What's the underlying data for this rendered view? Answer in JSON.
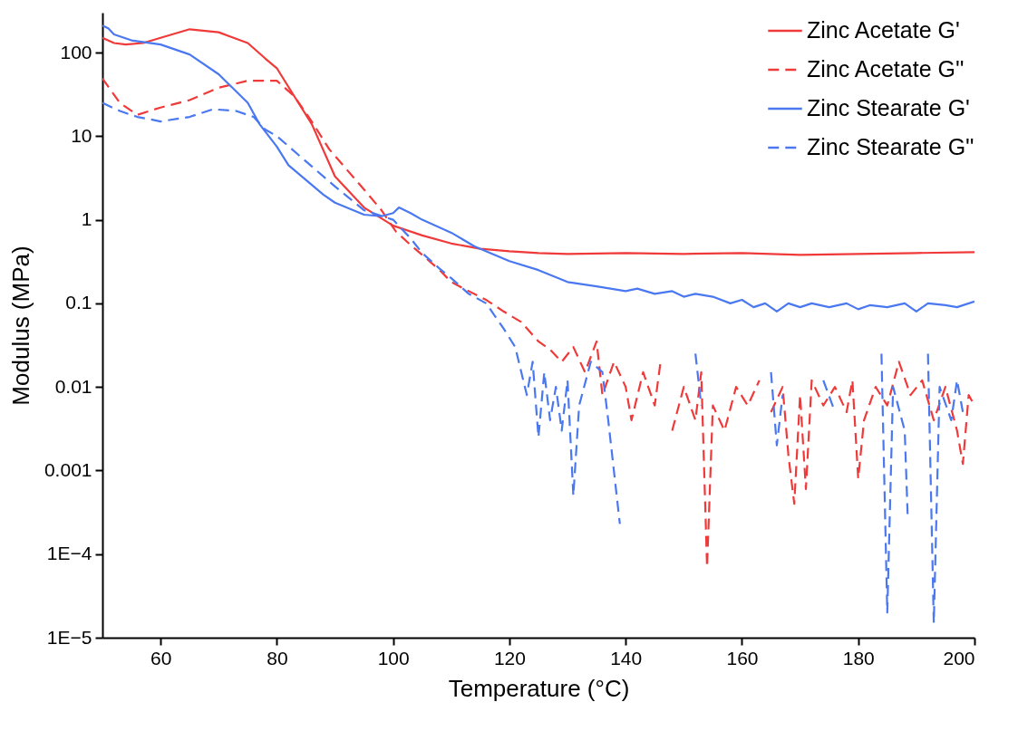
{
  "chart_data": {
    "type": "line",
    "xlabel": "Temperature (°C)",
    "ylabel": "Modulus (MPa)",
    "log": "y",
    "legend": "top right",
    "grid": false,
    "xlim": [
      50,
      200
    ],
    "xticks": [
      60,
      80,
      100,
      120,
      140,
      160,
      180,
      200
    ],
    "ylim": [
      1e-05,
      300
    ],
    "yticks": [
      {
        "value": 1e-05,
        "label": "1E−5"
      },
      {
        "value": 0.0001,
        "label": "1E−4"
      },
      0.001,
      0.01,
      0.1,
      1,
      10,
      100
    ],
    "series": [
      {
        "name": "Zinc Acetate G'",
        "color": "#f03a3a",
        "line_style": "solid",
        "x": [
          50,
          52,
          54,
          57,
          60,
          65,
          70,
          75,
          78,
          80,
          83,
          86,
          90,
          95,
          100,
          105,
          110,
          115,
          120,
          125,
          130,
          140,
          150,
          160,
          170,
          180,
          190,
          200
        ],
        "values": [
          150,
          130,
          125,
          130,
          150,
          190,
          175,
          130,
          85,
          65,
          30,
          14,
          3.3,
          1.4,
          0.85,
          0.65,
          0.52,
          0.45,
          0.42,
          0.4,
          0.39,
          0.4,
          0.39,
          0.4,
          0.38,
          0.39,
          0.4,
          0.41
        ]
      },
      {
        "name": "Zinc Acetate G''",
        "color": "#f03a3a",
        "line_style": "dashed",
        "x": [
          50,
          53,
          56,
          60,
          65,
          70,
          75,
          80,
          83,
          86,
          89,
          92,
          95,
          98,
          100.5,
          103,
          105,
          108,
          110,
          113,
          116,
          119,
          122,
          125,
          127,
          129,
          131,
          133,
          135,
          136,
          138,
          140,
          141,
          143,
          145,
          146,
          147,
          148,
          150,
          152,
          153,
          154,
          155,
          157,
          159,
          161,
          163,
          164,
          165,
          167,
          168,
          169,
          170,
          171,
          172,
          174,
          176,
          178,
          179,
          180,
          181,
          183,
          185,
          187,
          189,
          191,
          193,
          195,
          197,
          198,
          199,
          200
        ],
        "values": [
          49,
          25,
          18,
          22,
          27,
          38,
          46,
          46,
          30,
          15,
          7,
          4,
          2.3,
          1.3,
          0.72,
          0.5,
          0.38,
          0.25,
          0.18,
          0.14,
          0.11,
          0.08,
          0.06,
          0.035,
          0.028,
          0.02,
          0.03,
          0.015,
          0.035,
          0.008,
          0.02,
          0.01,
          0.004,
          0.015,
          0.006,
          0.02,
          null,
          0.003,
          0.01,
          0.004,
          0.015,
          7e-05,
          0.006,
          0.003,
          0.01,
          0.006,
          0.012,
          null,
          0.005,
          0.01,
          0.0015,
          0.0004,
          0.008,
          0.0006,
          0.012,
          0.006,
          0.01,
          0.005,
          0.012,
          0.0008,
          0.004,
          0.01,
          0.006,
          0.02,
          0.008,
          0.012,
          0.004,
          0.01,
          0.003,
          0.0012,
          0.008,
          0.006
        ]
      },
      {
        "name": "Zinc Stearate G'",
        "color": "#4a78f0",
        "line_style": "solid",
        "x": [
          50,
          51,
          52,
          55,
          60,
          65,
          70,
          75,
          77,
          80,
          82,
          85,
          88,
          90,
          95,
          98,
          100,
          101,
          103,
          105,
          110,
          114,
          120,
          125,
          130,
          135,
          140,
          142,
          145,
          148,
          150,
          152,
          155,
          158,
          160,
          162,
          164,
          166,
          168,
          170,
          172,
          175,
          178,
          180,
          182,
          185,
          188,
          190,
          192,
          195,
          197,
          200
        ],
        "values": [
          210,
          195,
          165,
          140,
          125,
          95,
          55,
          25,
          14,
          7.5,
          4.5,
          3,
          2,
          1.6,
          1.15,
          1.1,
          1.2,
          1.4,
          1.2,
          1.0,
          0.7,
          0.48,
          0.32,
          0.25,
          0.18,
          0.16,
          0.14,
          0.15,
          0.13,
          0.14,
          0.12,
          0.13,
          0.12,
          0.1,
          0.11,
          0.09,
          0.1,
          0.08,
          0.1,
          0.09,
          0.1,
          0.09,
          0.1,
          0.085,
          0.095,
          0.09,
          0.1,
          0.08,
          0.1,
          0.095,
          0.09,
          0.105
        ]
      },
      {
        "name": "Zinc Stearate G''",
        "color": "#4a78f0",
        "line_style": "dashed",
        "x": [
          50,
          53,
          56,
          58,
          60,
          65,
          69,
          73,
          76,
          78,
          80,
          85,
          90,
          95,
          100,
          103,
          105,
          108,
          110,
          113,
          116,
          119,
          121,
          123,
          124,
          125,
          126,
          127,
          128,
          129,
          130,
          131,
          132,
          134,
          136,
          137,
          139,
          140,
          152,
          153,
          154,
          165,
          166,
          167,
          168,
          174,
          176,
          178,
          184,
          185,
          186,
          188,
          188.5,
          190,
          192,
          193,
          194,
          196,
          197,
          198
        ],
        "values": [
          25,
          20,
          17,
          16,
          15,
          17,
          21,
          20,
          17,
          12,
          10,
          5,
          2.5,
          1.3,
          1.0,
          0.6,
          0.4,
          0.26,
          0.2,
          0.13,
          0.1,
          0.05,
          0.03,
          0.008,
          0.02,
          0.0025,
          0.015,
          0.004,
          0.01,
          0.003,
          0.012,
          0.0005,
          0.006,
          0.02,
          0.015,
          0.004,
          0.00023,
          null,
          0.025,
          0.006,
          null,
          0.015,
          0.002,
          0.008,
          null,
          0.012,
          0.005,
          null,
          0.025,
          2e-05,
          0.01,
          0.003,
          0.0003,
          null,
          0.025,
          1.5e-05,
          0.01,
          0.004,
          0.012,
          0.005
        ]
      }
    ]
  }
}
